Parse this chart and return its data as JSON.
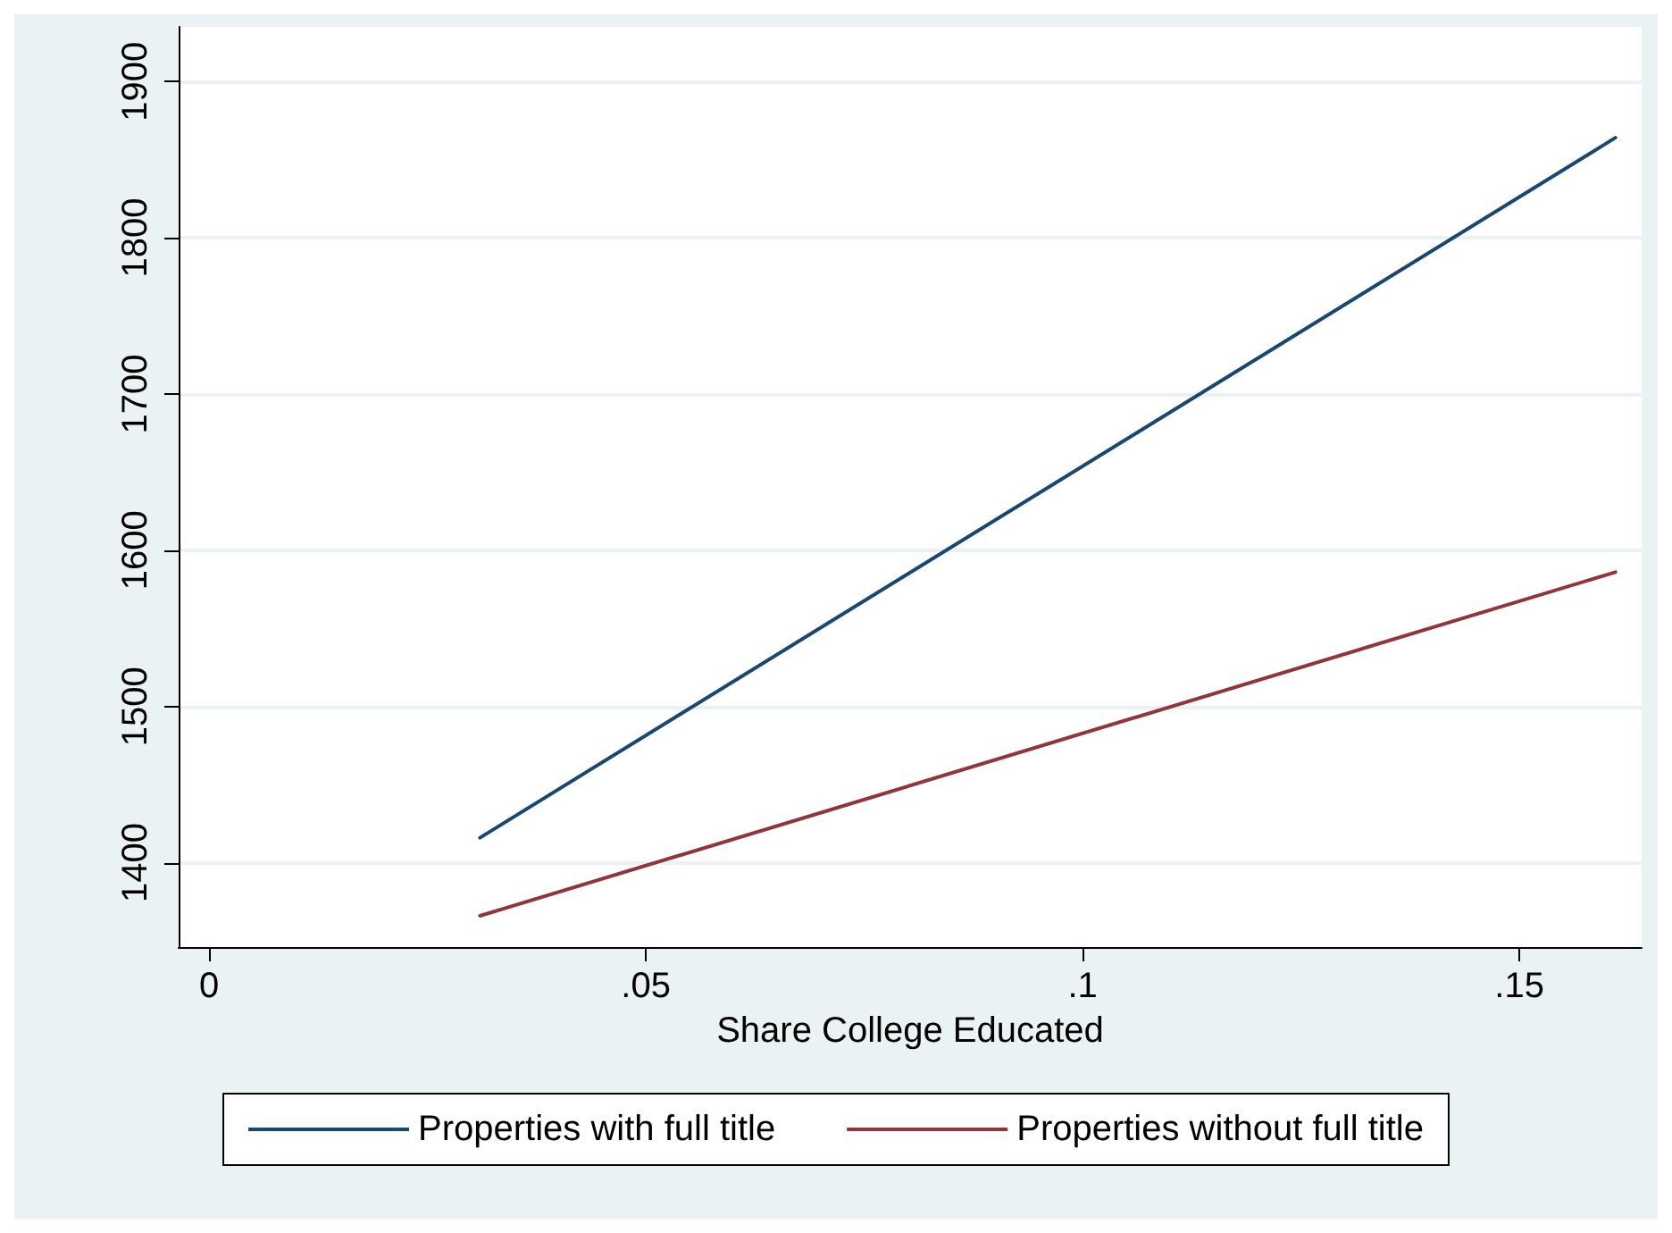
{
  "chart_data": {
    "type": "line",
    "xlabel": "Share College Educated",
    "x": [
      0.031,
      0.161
    ],
    "series": [
      {
        "name": "Properties with full title",
        "color": "#1a476f",
        "values": [
          1416,
          1864
        ]
      },
      {
        "name": "Properties without full title",
        "color": "#90353b",
        "values": [
          1366,
          1586
        ]
      }
    ],
    "xlim": [
      -0.0035,
      0.164
    ],
    "xticks": [
      0,
      {
        "value": 0.05,
        "label": ".05"
      },
      {
        "value": 0.1,
        "label": ".1"
      },
      {
        "value": 0.15,
        "label": ".15"
      }
    ],
    "ylim": [
      1346,
      1935
    ],
    "yticks": [
      1400,
      1500,
      1600,
      1700,
      1800,
      1900
    ],
    "grid": "y",
    "legend": "bottom",
    "marker": "none",
    "line_style": "solid"
  }
}
